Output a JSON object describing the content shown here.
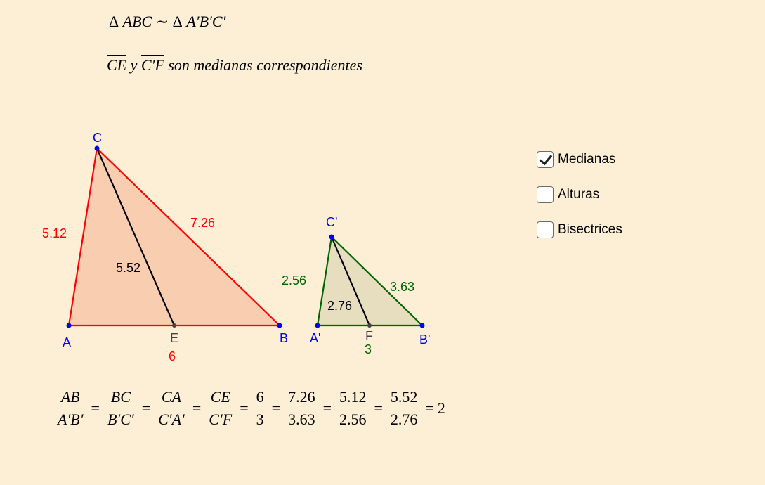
{
  "header": {
    "similarity": {
      "triangle_symbol": "Δ",
      "left": "ABC",
      "relation": "∼",
      "right": "A′B′C′"
    },
    "medians": {
      "seg1": "CE",
      "conj": "y",
      "seg2": "C′F",
      "text": "son medianas correspondientes"
    }
  },
  "big_triangle": {
    "fill": "#f4a381",
    "stroke": "#ff0000",
    "vertices": {
      "A": "A",
      "B": "B",
      "C": "C"
    },
    "midpoint": "E",
    "side_CA": "5.12",
    "side_BC": "7.26",
    "side_AB": "6",
    "median_CE": "5.52"
  },
  "small_triangle": {
    "fill": "#c9c9a3",
    "stroke": "#006400",
    "vertices": {
      "A": "A'",
      "B": "B'",
      "C": "C'"
    },
    "midpoint": "F",
    "side_CA": "2.56",
    "side_BC": "3.63",
    "side_AB": "3",
    "median_CF": "2.76"
  },
  "colors": {
    "point_blue": "#0000ff",
    "label_blue": "#0000ff",
    "midpoint_gray": "#444444"
  },
  "checkboxes": [
    {
      "label": "Medianas",
      "checked": true
    },
    {
      "label": "Alturas",
      "checked": false
    },
    {
      "label": "Bisectrices",
      "checked": false
    }
  ],
  "equation": {
    "fractions": [
      {
        "num": "AB",
        "den": "A′B′"
      },
      {
        "num": "BC",
        "den": "B′C′"
      },
      {
        "num": "CA",
        "den": "C′A′"
      },
      {
        "num": "CE",
        "den": "C′F"
      },
      {
        "num": "6",
        "den": "3"
      },
      {
        "num": "7.26",
        "den": "3.63"
      },
      {
        "num": "5.12",
        "den": "2.56"
      },
      {
        "num": "5.52",
        "den": "2.76"
      }
    ],
    "equals": "=",
    "result": "2"
  }
}
